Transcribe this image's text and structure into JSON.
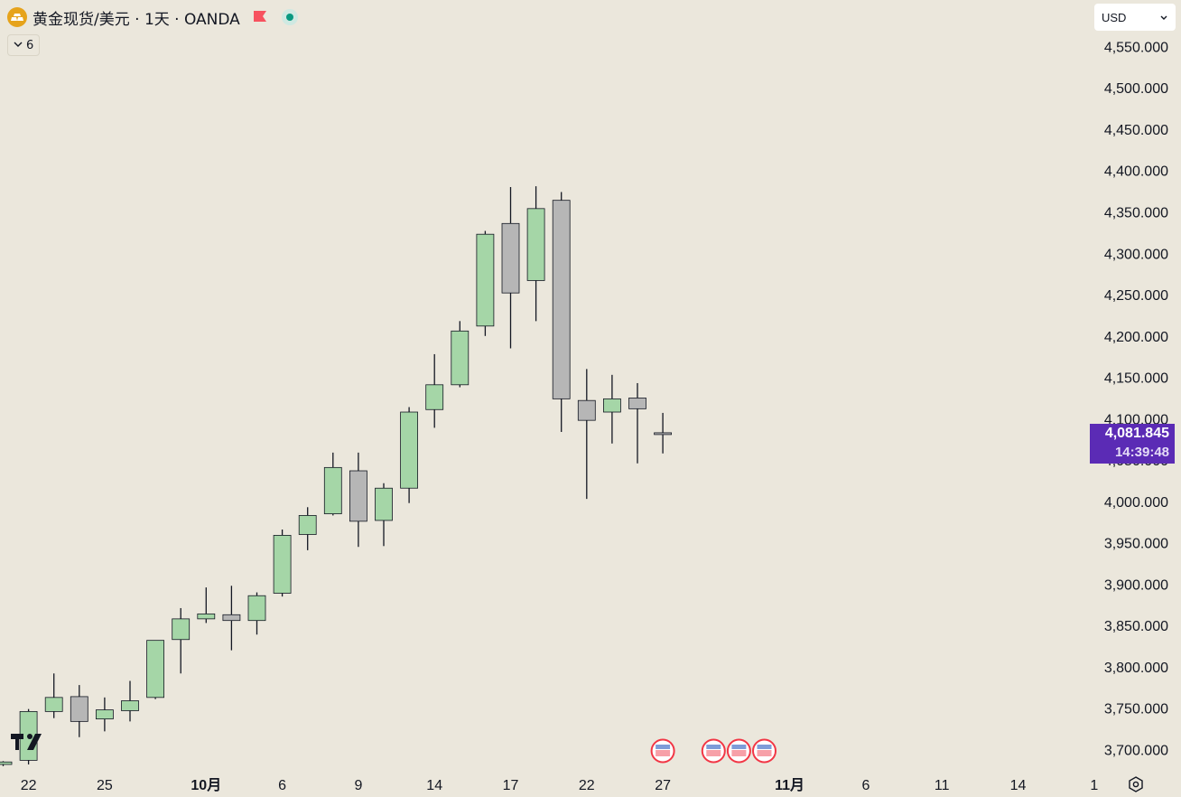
{
  "header": {
    "symbol_title": "黄金现货/美元 · 1天 · OANDA",
    "logo_icon": "gold-bars-icon",
    "flag_icon": "red-flag-icon",
    "market_status_icon": "market-open-dot-icon",
    "collapse_count": "6",
    "collapse_icon": "chevron-down-icon"
  },
  "currency_select": {
    "value": "USD",
    "icon": "chevron-down-icon"
  },
  "price_label": {
    "price": "4,081.845",
    "countdown": "14:39:48",
    "color": "#5b2bb5"
  },
  "settings_icon": "settings-icon",
  "tv_logo": "tradingview-logo",
  "colors": {
    "up": "#a5d6a7",
    "down": "#b6b6b6",
    "background": "#ebe7dc",
    "wick": "#131722"
  },
  "chart_data": {
    "type": "candlestick",
    "y_axis": {
      "position": "right",
      "ticks": [
        {
          "value": 4550,
          "label": "4,550.000"
        },
        {
          "value": 4500,
          "label": "4,500.000"
        },
        {
          "value": 4450,
          "label": "4,450.000"
        },
        {
          "value": 4400,
          "label": "4,400.000"
        },
        {
          "value": 4350,
          "label": "4,350.000"
        },
        {
          "value": 4300,
          "label": "4,300.000"
        },
        {
          "value": 4250,
          "label": "4,250.000"
        },
        {
          "value": 4200,
          "label": "4,200.000"
        },
        {
          "value": 4150,
          "label": "4,150.000"
        },
        {
          "value": 4100,
          "label": "4,100.000"
        },
        {
          "value": 4050,
          "label": "4,050.000"
        },
        {
          "value": 4000,
          "label": "4,000.000"
        },
        {
          "value": 3950,
          "label": "3,950.000"
        },
        {
          "value": 3900,
          "label": "3,900.000"
        },
        {
          "value": 3850,
          "label": "3,850.000"
        },
        {
          "value": 3800,
          "label": "3,800.000"
        },
        {
          "value": 3750,
          "label": "3,750.000"
        },
        {
          "value": 3700,
          "label": "3,700.000"
        }
      ]
    },
    "x_axis": {
      "ticks": [
        {
          "index": 1,
          "label": "22",
          "bold": false
        },
        {
          "index": 4,
          "label": "25",
          "bold": false
        },
        {
          "index": 8,
          "label": "10月",
          "bold": true
        },
        {
          "index": 11,
          "label": "6",
          "bold": false
        },
        {
          "index": 14,
          "label": "9",
          "bold": false
        },
        {
          "index": 17,
          "label": "14",
          "bold": false
        },
        {
          "index": 20,
          "label": "17",
          "bold": false
        },
        {
          "index": 23,
          "label": "22",
          "bold": false
        },
        {
          "index": 26,
          "label": "27",
          "bold": false
        },
        {
          "index": 31,
          "label": "11月",
          "bold": true
        },
        {
          "index": 34,
          "label": "6",
          "bold": false
        },
        {
          "index": 37,
          "label": "11",
          "bold": false
        },
        {
          "index": 40,
          "label": "14",
          "bold": false
        },
        {
          "index": 43,
          "label": "1",
          "bold": false
        }
      ]
    },
    "candles": [
      {
        "index": 0,
        "open": 3682,
        "high": 3686,
        "low": 3680,
        "close": 3685
      },
      {
        "index": 1,
        "open": 3687,
        "high": 3749,
        "low": 3682,
        "close": 3746
      },
      {
        "index": 2,
        "open": 3746,
        "high": 3792,
        "low": 3738,
        "close": 3763
      },
      {
        "index": 3,
        "open": 3764,
        "high": 3778,
        "low": 3715,
        "close": 3734
      },
      {
        "index": 4,
        "open": 3737,
        "high": 3763,
        "low": 3722,
        "close": 3748
      },
      {
        "index": 5,
        "open": 3747,
        "high": 3783,
        "low": 3734,
        "close": 3759
      },
      {
        "index": 6,
        "open": 3763,
        "high": 3832,
        "low": 3761,
        "close": 3832
      },
      {
        "index": 7,
        "open": 3833,
        "high": 3871,
        "low": 3792,
        "close": 3858
      },
      {
        "index": 8,
        "open": 3858,
        "high": 3896,
        "low": 3853,
        "close": 3864
      },
      {
        "index": 9,
        "open": 3863,
        "high": 3898,
        "low": 3820,
        "close": 3856
      },
      {
        "index": 10,
        "open": 3856,
        "high": 3890,
        "low": 3839,
        "close": 3886
      },
      {
        "index": 11,
        "open": 3889,
        "high": 3966,
        "low": 3885,
        "close": 3959
      },
      {
        "index": 12,
        "open": 3960,
        "high": 3993,
        "low": 3941,
        "close": 3983
      },
      {
        "index": 13,
        "open": 3985,
        "high": 4059,
        "low": 3983,
        "close": 4041
      },
      {
        "index": 14,
        "open": 4037,
        "high": 4059,
        "low": 3945,
        "close": 3976
      },
      {
        "index": 15,
        "open": 3977,
        "high": 4022,
        "low": 3946,
        "close": 4016
      },
      {
        "index": 16,
        "open": 4016,
        "high": 4114,
        "low": 3998,
        "close": 4108
      },
      {
        "index": 17,
        "open": 4111,
        "high": 4178,
        "low": 4089,
        "close": 4141
      },
      {
        "index": 18,
        "open": 4141,
        "high": 4218,
        "low": 4138,
        "close": 4206
      },
      {
        "index": 19,
        "open": 4212,
        "high": 4327,
        "low": 4200,
        "close": 4323
      },
      {
        "index": 20,
        "open": 4336,
        "high": 4380,
        "low": 4185,
        "close": 4252
      },
      {
        "index": 21,
        "open": 4267,
        "high": 4381,
        "low": 4218,
        "close": 4354
      },
      {
        "index": 22,
        "open": 4364,
        "high": 4374,
        "low": 4084,
        "close": 4124
      },
      {
        "index": 23,
        "open": 4122,
        "high": 4160,
        "low": 4003,
        "close": 4098
      },
      {
        "index": 24,
        "open": 4108,
        "high": 4153,
        "low": 4070,
        "close": 4124
      },
      {
        "index": 25,
        "open": 4125,
        "high": 4143,
        "low": 4046,
        "close": 4112
      },
      {
        "index": 26,
        "open": 4083,
        "high": 4107,
        "low": 4058,
        "close": 4082
      }
    ],
    "event_markers": [
      {
        "index": 26,
        "icon": "us-flag-icon"
      },
      {
        "index": 28,
        "icon": "us-flag-icon"
      },
      {
        "index": 29,
        "icon": "us-flag-icon"
      },
      {
        "index": 30,
        "icon": "us-flag-icon"
      }
    ]
  }
}
